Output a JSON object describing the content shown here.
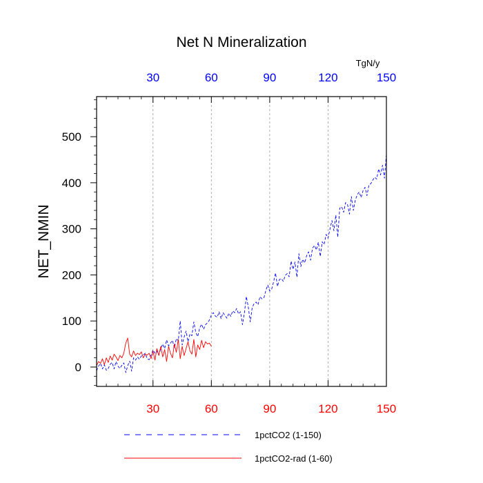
{
  "chart_data": {
    "type": "line",
    "title": "Net N Mineralization",
    "ylabel": "NET_NMIN",
    "units": "TgN/y",
    "xlim": [
      1,
      150
    ],
    "ylim": [
      -42,
      587
    ],
    "x_ticks": [
      30,
      60,
      90,
      120,
      150
    ],
    "y_ticks": [
      0,
      100,
      200,
      300,
      400,
      500
    ],
    "top_tick_labels": [
      "30",
      "60",
      "90",
      "120",
      "150"
    ],
    "bottom_tick_labels": [
      "30",
      "60",
      "90",
      "120",
      "150"
    ],
    "y_tick_labels": [
      "0",
      "100",
      "200",
      "300",
      "400",
      "500"
    ],
    "top_tick_color": "#0000ff",
    "bottom_tick_color": "#ff0000",
    "grid": "vertical dashed at x ticks",
    "legend_position": "bottom",
    "series": [
      {
        "name": "1pctCO2 (1-150)",
        "color": "#0000ff",
        "style": "dashed",
        "values": [
          -8,
          2,
          8,
          -4,
          5,
          -7,
          -3,
          6,
          10,
          -4,
          12,
          2,
          -3,
          4,
          9,
          -12,
          3,
          13,
          -9,
          20,
          15,
          22,
          17,
          24,
          26,
          30,
          18,
          16,
          26,
          37,
          30,
          35,
          26,
          40,
          50,
          40,
          59,
          46,
          52,
          58,
          41,
          62,
          57,
          100,
          48,
          65,
          78,
          55,
          72,
          68,
          98,
          75,
          66,
          85,
          93,
          82,
          92,
          96,
          102,
          113,
          118,
          111,
          108,
          120,
          105,
          118,
          112,
          106,
          117,
          110,
          122,
          118,
          127,
          115,
          120,
          92,
          118,
          153,
          130,
          98,
          129,
          138,
          141,
          135,
          153,
          148,
          150,
          166,
          178,
          165,
          169,
          185,
          204,
          175,
          190,
          192,
          186,
          199,
          203,
          196,
          230,
          212,
          228,
          195,
          246,
          218,
          234,
          226,
          242,
          250,
          232,
          258,
          264,
          254,
          271,
          240,
          272,
          266,
          288,
          280,
          300,
          318,
          296,
          330,
          282,
          345,
          348,
          336,
          357,
          353,
          332,
          370,
          340,
          362,
          374,
          380,
          368,
          383,
          390,
          372,
          395,
          398,
          406,
          412,
          408,
          430,
          417,
          438,
          410,
          462
        ]
      },
      {
        "name": "1pctCO2-rad (1-60)",
        "color": "#ff0000",
        "style": "solid",
        "values": [
          3,
          12,
          8,
          18,
          5,
          20,
          10,
          24,
          15,
          28,
          22,
          14,
          25,
          20,
          30,
          52,
          63,
          28,
          22,
          35,
          25,
          30,
          27,
          33,
          20,
          28,
          26,
          30,
          18,
          35,
          15,
          40,
          25,
          45,
          22,
          38,
          12,
          45,
          30,
          20,
          50,
          32,
          60,
          18,
          45,
          25,
          40,
          55,
          35,
          28,
          60,
          22,
          48,
          38,
          58,
          42,
          55,
          50,
          52,
          45
        ]
      }
    ]
  }
}
